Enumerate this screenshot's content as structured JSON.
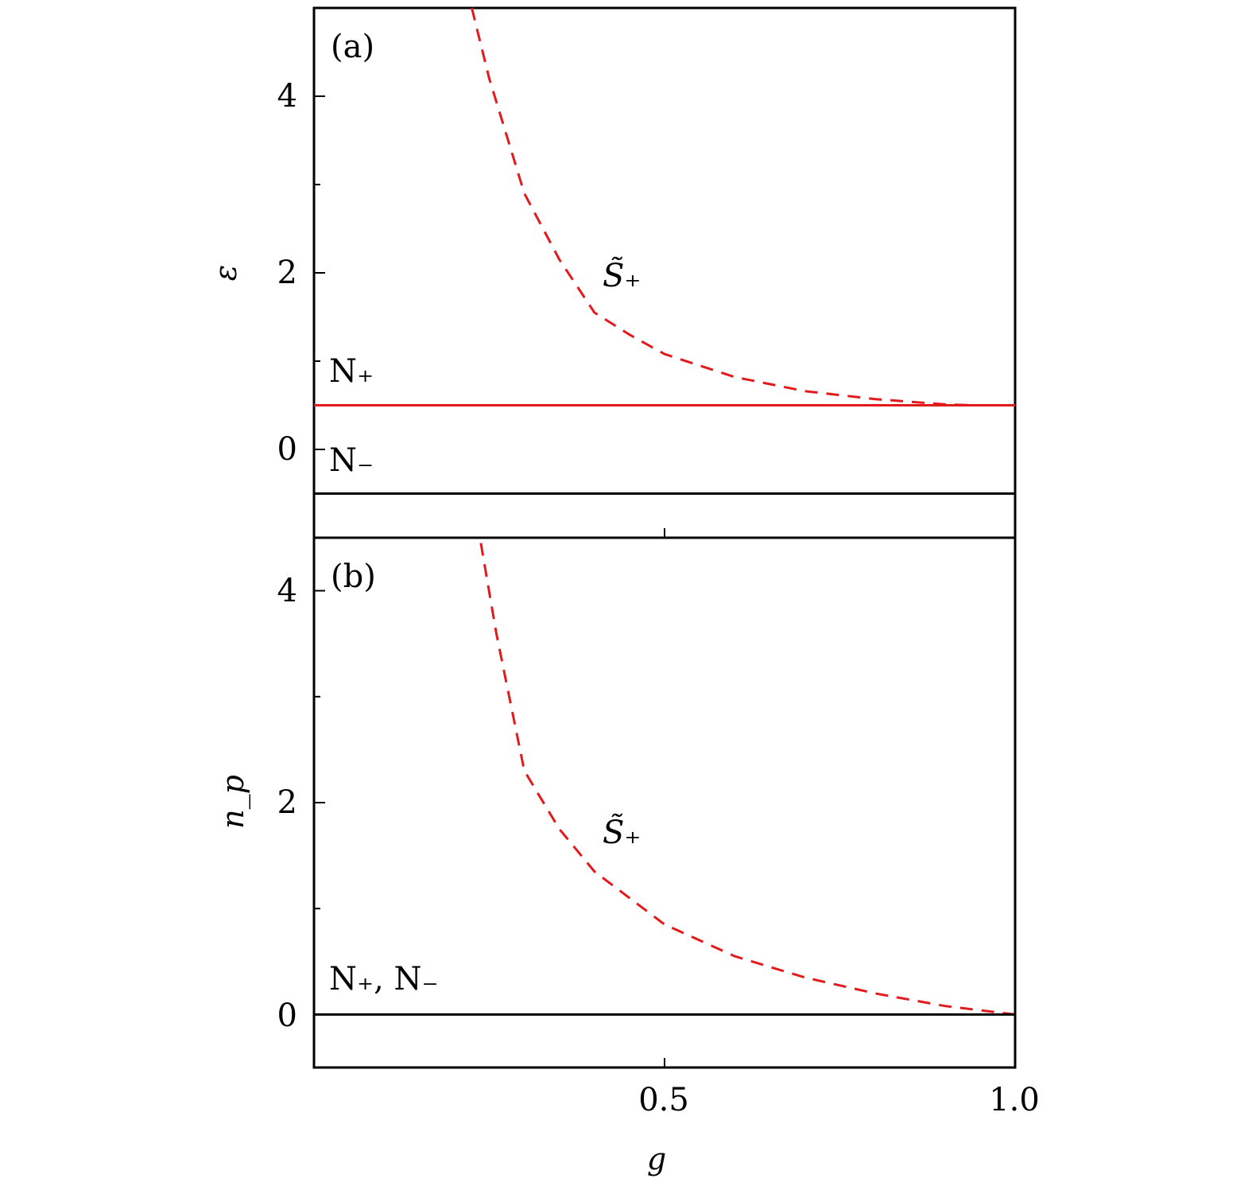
{
  "chart_data": [
    {
      "panel": "(a)",
      "type": "line",
      "ylabel": "ε",
      "xlim": [
        0.0,
        1.0
      ],
      "ylim": [
        -1.0,
        5.0
      ],
      "yticks": [
        "0",
        "2",
        "4"
      ],
      "xticks": [
        "0.5"
      ],
      "series": [
        {
          "name": "S̃₊",
          "color": "#e31a1c",
          "style": "dashed",
          "x": [
            0.225,
            0.25,
            0.3,
            0.35,
            0.4,
            0.45,
            0.5,
            0.6,
            0.7,
            0.8,
            0.9,
            0.94
          ],
          "y": [
            5.0,
            4.2,
            2.9,
            2.15,
            1.55,
            1.3,
            1.08,
            0.82,
            0.66,
            0.57,
            0.51,
            0.5
          ]
        },
        {
          "name": "N₊",
          "color": "#e31a1c",
          "style": "solid",
          "x": [
            0.0,
            1.0
          ],
          "y": [
            0.5,
            0.5
          ]
        },
        {
          "name": "N₋",
          "color": "#000000",
          "style": "solid",
          "x": [
            0.0,
            1.0
          ],
          "y": [
            -0.5,
            -0.5
          ]
        }
      ],
      "annotations": [
        "S̃₊",
        "N₊",
        "N₋"
      ]
    },
    {
      "panel": "(b)",
      "type": "line",
      "ylabel": "n_p",
      "xlabel": "g",
      "xlim": [
        0.0,
        1.0
      ],
      "ylim": [
        -0.5,
        4.5
      ],
      "yticks": [
        "0",
        "2",
        "4"
      ],
      "xticks": [
        "0.5",
        "1.0"
      ],
      "series": [
        {
          "name": "S̃₊",
          "color": "#e31a1c",
          "style": "dashed",
          "x": [
            0.238,
            0.26,
            0.3,
            0.35,
            0.4,
            0.45,
            0.5,
            0.6,
            0.7,
            0.8,
            0.9,
            1.0
          ],
          "y": [
            4.45,
            3.6,
            2.3,
            1.75,
            1.35,
            1.1,
            0.85,
            0.55,
            0.35,
            0.2,
            0.08,
            0.0
          ]
        },
        {
          "name": "N₊, N₋",
          "color": "#000000",
          "style": "solid",
          "x": [
            0.0,
            1.0
          ],
          "y": [
            0.0,
            0.0
          ]
        }
      ],
      "annotations": [
        "S̃₊",
        "N₊, N₋"
      ]
    }
  ]
}
